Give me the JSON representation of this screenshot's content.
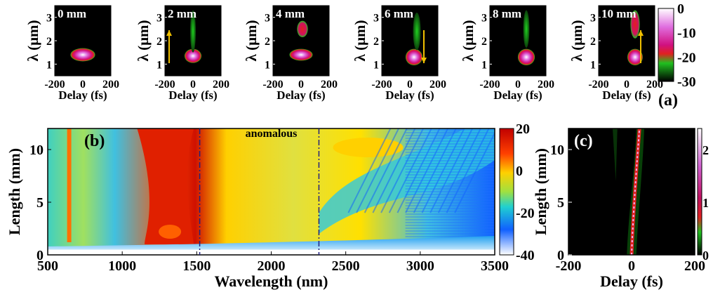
{
  "chart_data": [
    {
      "type": "heatmap",
      "panel": "(a)",
      "title": "",
      "xlabel": "Delay (fs)",
      "ylabel": "λ (μm)",
      "xlim": [
        -200,
        200
      ],
      "ylim": [
        0.5,
        3.5
      ],
      "xticks": [
        "-200",
        "0",
        "200"
      ],
      "yticks": [
        "1",
        "2",
        "3"
      ],
      "subplot_labels": [
        "0 mm",
        "2 mm",
        "4 mm",
        "6 mm",
        "8 mm",
        "10 mm"
      ],
      "arrows": [
        {
          "subplot": "2 mm",
          "direction": "up"
        },
        {
          "subplot": "6 mm",
          "direction": "down"
        },
        {
          "subplot": "10 mm",
          "direction": "up"
        }
      ],
      "colorbar": {
        "ticks": [
          "0",
          "-10",
          "-20",
          "-30"
        ],
        "range": [
          -30,
          0
        ]
      },
      "features": [
        {
          "subplot": "0 mm",
          "blobs": [
            {
              "t": 0,
              "lam": 1.4,
              "intensity": 0,
              "wt": 80,
              "wl": 0.28
            }
          ]
        },
        {
          "subplot": "2 mm",
          "blobs": [
            {
              "t": 0,
              "lam": 1.35,
              "intensity": -5,
              "wt": 55,
              "wl": 0.3
            },
            {
              "t": 0,
              "lam": 2.4,
              "intensity": -22,
              "wt": 12,
              "wl": 0.9
            }
          ]
        },
        {
          "subplot": "4 mm",
          "blobs": [
            {
              "t": 0,
              "lam": 1.4,
              "intensity": -8,
              "wt": 75,
              "wl": 0.25
            },
            {
              "t": 10,
              "lam": 2.5,
              "intensity": -18,
              "wt": 35,
              "wl": 0.35
            }
          ]
        },
        {
          "subplot": "6 mm",
          "blobs": [
            {
              "t": 30,
              "lam": 1.3,
              "intensity": -10,
              "wt": 55,
              "wl": 0.35
            },
            {
              "t": 50,
              "lam": 2.4,
              "intensity": -22,
              "wt": 25,
              "wl": 0.8
            }
          ]
        },
        {
          "subplot": "8 mm",
          "blobs": [
            {
              "t": 60,
              "lam": 1.3,
              "intensity": -10,
              "wt": 55,
              "wl": 0.35
            },
            {
              "t": 60,
              "lam": 2.5,
              "intensity": -22,
              "wt": 20,
              "wl": 0.8
            }
          ]
        },
        {
          "subplot": "10 mm",
          "blobs": [
            {
              "t": 60,
              "lam": 1.3,
              "intensity": -10,
              "wt": 50,
              "wl": 0.35
            },
            {
              "t": 60,
              "lam": 2.7,
              "intensity": -18,
              "wt": 30,
              "wl": 0.6
            }
          ]
        }
      ]
    },
    {
      "type": "heatmap",
      "panel": "(b)",
      "title": "",
      "xlabel": "Wavelength (nm)",
      "ylabel": "Length (mm)",
      "xlim": [
        500,
        3500
      ],
      "ylim": [
        0,
        12
      ],
      "xticks": [
        "500",
        "1000",
        "1500",
        "2000",
        "2500",
        "3000",
        "3500"
      ],
      "yticks": [
        "0",
        "5",
        "10"
      ],
      "annotations": [
        {
          "text": "anomalous",
          "x": 2000,
          "y": 11.2
        }
      ],
      "dashed_lines_x": [
        1520,
        2320
      ],
      "colorbar": {
        "ticks": [
          "20",
          "0",
          "-20",
          "-40"
        ],
        "range": [
          -40,
          20
        ]
      },
      "features": [
        {
          "label": "pump",
          "wavelength": 1300,
          "intensity": 20
        },
        {
          "label": "dispersive wave",
          "wavelength": 650,
          "intensity": 0
        },
        {
          "label": "red-shifted band",
          "wavelength": 2650,
          "length": 10,
          "intensity": 0
        }
      ]
    },
    {
      "type": "heatmap",
      "panel": "(c)",
      "title": "",
      "xlabel": "Delay (fs)",
      "ylabel": "Length (mm)",
      "xlim": [
        -200,
        200
      ],
      "ylim": [
        0,
        12
      ],
      "xticks": [
        "-200",
        "0",
        "200"
      ],
      "yticks": [
        "0",
        "5",
        "10"
      ],
      "colorbar": {
        "ticks": [
          "2",
          "1",
          "0"
        ],
        "range": [
          0,
          2.4
        ]
      },
      "features": [
        {
          "label": "soliton trajectory",
          "start": [
            0,
            0
          ],
          "end": [
            25,
            12
          ],
          "intensity": 2.2
        }
      ]
    }
  ]
}
